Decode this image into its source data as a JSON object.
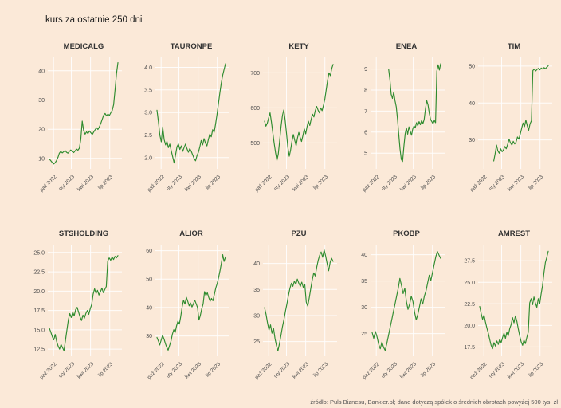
{
  "page": {
    "title": "kurs za ostatnie 250 dni",
    "source_note": "źródło: Puls Biznesu, Bankier.pl; dane dotyczą spółek o średnich obrotach powyżej 500 tys. zł",
    "background_color": "#fbe9d8",
    "line_color": "#2e8b2e",
    "gridline_color": "#ffffff"
  },
  "axes": {
    "x_ticks": [
      "paź 2022",
      "sty 2023",
      "kwi 2023",
      "lip 2023"
    ],
    "x_tick_pos": [
      0.06,
      0.32,
      0.6,
      0.88
    ]
  },
  "chart_data": [
    {
      "type": "line",
      "title": "MEDICALG",
      "ylim": [
        7.5,
        43.5
      ],
      "y_ticks": [
        "10",
        "20",
        "30",
        "40"
      ],
      "values": [
        9.8,
        9.2,
        8.6,
        8.1,
        8.5,
        9.3,
        10.4,
        11.8,
        12.4,
        11.9,
        12.3,
        12.7,
        12.1,
        11.8,
        12.4,
        12.9,
        12.3,
        12.0,
        12.6,
        13.2,
        12.8,
        13.5,
        16.5,
        22.8,
        19.5,
        18.3,
        19.1,
        18.5,
        19.4,
        18.8,
        18.2,
        19.0,
        19.8,
        20.5,
        19.9,
        20.8,
        22.0,
        23.4,
        24.8,
        25.4,
        24.6,
        25.2,
        24.7,
        25.6,
        26.4,
        28.4,
        33.5,
        39.0,
        42.8
      ]
    },
    {
      "type": "line",
      "title": "TAURONPE",
      "ylim": [
        1.82,
        4.15
      ],
      "y_ticks": [
        "2.0",
        "2.5",
        "3.0",
        "3.5",
        "4.0"
      ],
      "values": [
        3.05,
        2.8,
        2.5,
        2.35,
        2.68,
        2.4,
        2.28,
        2.36,
        2.22,
        2.3,
        2.15,
        2.02,
        1.88,
        2.06,
        2.24,
        2.3,
        2.18,
        2.26,
        2.14,
        2.22,
        2.3,
        2.2,
        2.12,
        2.2,
        2.14,
        2.06,
        1.98,
        1.93,
        2.04,
        2.12,
        2.24,
        2.38,
        2.28,
        2.42,
        2.32,
        2.26,
        2.4,
        2.52,
        2.46,
        2.62,
        2.56,
        2.74,
        2.95,
        3.18,
        3.42,
        3.64,
        3.82,
        3.95,
        4.08
      ]
    },
    {
      "type": "line",
      "title": "KETY",
      "ylim": [
        435,
        735
      ],
      "y_ticks": [
        "500",
        "600",
        "700"
      ],
      "values": [
        562,
        548,
        556,
        572,
        586,
        560,
        530,
        500,
        472,
        450,
        468,
        505,
        545,
        578,
        594,
        566,
        528,
        488,
        462,
        480,
        505,
        524,
        508,
        492,
        514,
        530,
        516,
        504,
        522,
        540,
        526,
        546,
        562,
        550,
        568,
        582,
        574,
        592,
        604,
        594,
        586,
        600,
        592,
        608,
        626,
        652,
        678,
        700,
        692,
        712,
        724
      ]
    },
    {
      "type": "line",
      "title": "ENEA",
      "ylim": [
        4.4,
        9.4
      ],
      "y_ticks": [
        "5",
        "6",
        "7",
        "8",
        "9"
      ],
      "values": [
        null,
        null,
        null,
        null,
        null,
        null,
        null,
        null,
        null,
        null,
        null,
        null,
        null,
        9.0,
        8.5,
        7.8,
        7.6,
        7.9,
        7.5,
        7.2,
        6.6,
        5.9,
        5.2,
        4.7,
        4.6,
        5.3,
        5.9,
        6.2,
        5.9,
        6.25,
        6.05,
        5.85,
        6.15,
        6.3,
        6.2,
        6.45,
        6.3,
        6.5,
        6.35,
        6.55,
        6.4,
        6.6,
        7.1,
        7.5,
        7.3,
        6.9,
        6.6,
        6.5,
        6.4,
        6.55,
        6.45,
        8.9,
        9.2,
        8.95,
        9.25
      ]
    },
    {
      "type": "line",
      "title": "TIM",
      "ylim": [
        23,
        51.5
      ],
      "y_ticks": [
        "30",
        "40",
        "50"
      ],
      "values": [
        null,
        null,
        null,
        null,
        null,
        null,
        null,
        null,
        null,
        null,
        24.3,
        26.2,
        28.6,
        27.0,
        26.4,
        27.6,
        26.8,
        27.3,
        28.2,
        27.6,
        28.8,
        30.2,
        29.2,
        28.6,
        29.6,
        28.9,
        29.4,
        30.8,
        30.2,
        31.6,
        33.2,
        34.6,
        33.6,
        35.4,
        33.8,
        32.6,
        34.4,
        35.2,
        48.8,
        49.2,
        48.7,
        49.1,
        49.4,
        49.0,
        49.5,
        49.2,
        49.6,
        49.3,
        49.7,
        50.1
      ]
    },
    {
      "type": "line",
      "title": "STSHOLDING",
      "ylim": [
        12.0,
        25.6
      ],
      "y_ticks": [
        "12.5",
        "15.0",
        "17.5",
        "20.0",
        "22.5",
        "25.0"
      ],
      "values": [
        15.2,
        14.7,
        14.1,
        13.7,
        14.4,
        13.5,
        12.9,
        12.5,
        13.1,
        12.7,
        12.3,
        13.6,
        15.0,
        16.3,
        17.1,
        16.6,
        17.3,
        16.8,
        17.6,
        17.9,
        17.3,
        16.7,
        16.2,
        16.9,
        16.5,
        17.1,
        17.5,
        17.0,
        17.7,
        18.3,
        19.6,
        20.3,
        19.7,
        20.1,
        19.5,
        19.9,
        20.4,
        19.8,
        20.2,
        20.6,
        23.9,
        24.3,
        24.0,
        24.4,
        24.1,
        24.5,
        24.3,
        24.6
      ]
    },
    {
      "type": "line",
      "title": "ALIOR",
      "ylim": [
        24,
        61
      ],
      "y_ticks": [
        "30",
        "40",
        "50",
        "60"
      ],
      "values": [
        29.5,
        28.2,
        26.8,
        28.6,
        30.2,
        29.0,
        27.4,
        26.0,
        25.0,
        26.6,
        28.2,
        30.6,
        32.2,
        31.2,
        33.6,
        35.2,
        34.2,
        36.8,
        40.2,
        42.6,
        41.2,
        43.6,
        42.2,
        40.6,
        41.6,
        40.2,
        41.2,
        42.6,
        41.4,
        40.0,
        35.6,
        37.2,
        39.6,
        41.2,
        45.6,
        44.2,
        45.2,
        43.6,
        42.2,
        43.2,
        42.4,
        44.6,
        46.8,
        48.4,
        50.4,
        52.8,
        55.4,
        58.6,
        56.2,
        57.8
      ]
    },
    {
      "type": "line",
      "title": "PZU",
      "ylim": [
        22.8,
        43
      ],
      "y_ticks": [
        "25",
        "30",
        "35",
        "40"
      ],
      "values": [
        31.5,
        30.2,
        28.6,
        27.2,
        28.2,
        26.6,
        27.6,
        25.6,
        24.2,
        23.2,
        24.6,
        26.2,
        27.8,
        29.2,
        30.8,
        32.2,
        33.8,
        35.2,
        36.2,
        35.6,
        36.6,
        36.0,
        37.0,
        36.2,
        35.6,
        36.4,
        35.4,
        36.0,
        32.6,
        31.8,
        33.4,
        35.2,
        36.8,
        38.2,
        37.6,
        39.2,
        40.6,
        41.6,
        42.2,
        41.2,
        42.6,
        41.4,
        40.0,
        38.6,
        40.2,
        41.0,
        40.4
      ]
    },
    {
      "type": "line",
      "title": "PKOBP",
      "ylim": [
        21.3,
        41.3
      ],
      "y_ticks": [
        "25",
        "30",
        "35",
        "40"
      ],
      "values": [
        25.2,
        24.1,
        25.4,
        24.4,
        23.0,
        22.1,
        23.4,
        22.4,
        21.8,
        23.1,
        24.6,
        26.1,
        27.6,
        29.1,
        30.6,
        32.1,
        33.6,
        35.5,
        34.1,
        32.6,
        33.6,
        31.1,
        29.6,
        30.6,
        32.1,
        31.1,
        29.1,
        27.6,
        28.6,
        30.1,
        31.6,
        30.6,
        32.1,
        33.1,
        34.6,
        36.1,
        35.1,
        36.6,
        38.1,
        39.6,
        40.6,
        39.9,
        39.3
      ]
    },
    {
      "type": "line",
      "title": "AMREST",
      "ylim": [
        16.8,
        29.0
      ],
      "y_ticks": [
        "17.5",
        "20.0",
        "22.5",
        "25.0",
        "27.5"
      ],
      "values": [
        22.2,
        21.4,
        20.7,
        21.2,
        20.4,
        19.7,
        19.1,
        18.4,
        17.7,
        17.3,
        18.0,
        17.6,
        18.2,
        17.8,
        18.4,
        18.0,
        18.6,
        19.1,
        18.5,
        19.2,
        18.8,
        19.6,
        20.1,
        20.9,
        20.3,
        21.1,
        20.5,
        19.6,
        18.8,
        18.1,
        17.7,
        18.3,
        17.9,
        18.6,
        19.2,
        22.6,
        23.1,
        22.4,
        23.3,
        22.6,
        22.1,
        23.1,
        22.5,
        23.6,
        24.6,
        26.1,
        27.3,
        27.9,
        28.6
      ]
    }
  ]
}
